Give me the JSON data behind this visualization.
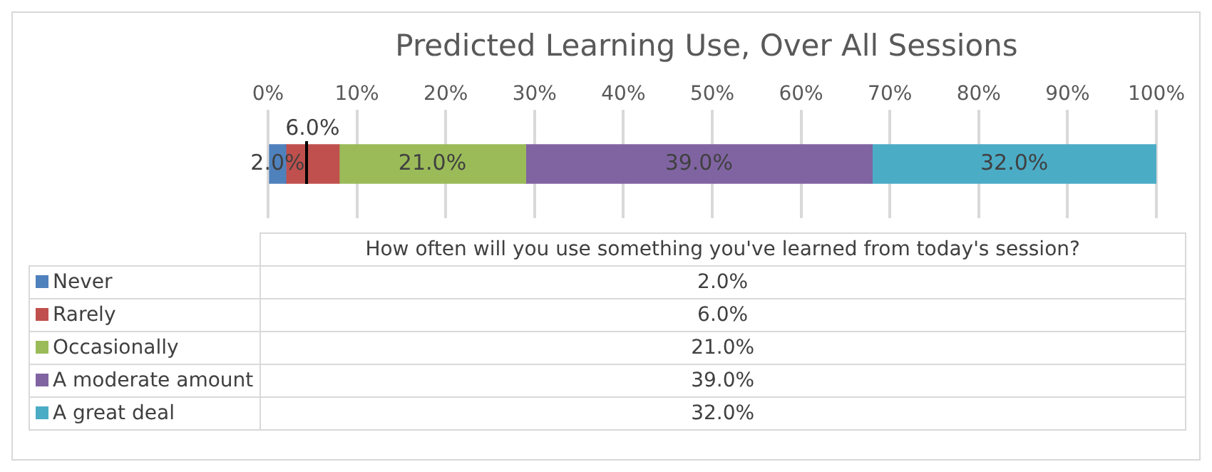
{
  "chart_data": {
    "type": "bar",
    "orientation": "horizontal",
    "stacked": true,
    "title": "Predicted Learning Use, Over All Sessions",
    "categories": [
      null
    ],
    "annotations": [
      "How often will you use something you've learned from today's session?"
    ],
    "series": [
      {
        "name": "Never",
        "color": "#4f81bd",
        "values": [
          2
        ],
        "value_labels": [
          "2.0%"
        ]
      },
      {
        "name": "Rarely",
        "color": "#c0504d",
        "values": [
          6
        ],
        "value_labels": [
          "6.0%"
        ]
      },
      {
        "name": "Occasionally",
        "color": "#9bbb59",
        "values": [
          21
        ],
        "value_labels": [
          "21.0%"
        ]
      },
      {
        "name": "A moderate amount",
        "color": "#8064a2",
        "values": [
          39
        ],
        "value_labels": [
          "39.0%"
        ]
      },
      {
        "name": "A great deal",
        "color": "#4bacc6",
        "values": [
          32
        ],
        "value_labels": [
          "32.0%"
        ]
      }
    ],
    "xlim": [
      0,
      100
    ],
    "xticks": [
      {
        "value": 0,
        "label": "0%"
      },
      {
        "value": 10,
        "label": "10%"
      },
      {
        "value": 20,
        "label": "20%"
      },
      {
        "value": 30,
        "label": "30%"
      },
      {
        "value": 40,
        "label": "40%"
      },
      {
        "value": 50,
        "label": "50%"
      },
      {
        "value": 60,
        "label": "60%"
      },
      {
        "value": 70,
        "label": "70%"
      },
      {
        "value": 80,
        "label": "80%"
      },
      {
        "value": 90,
        "label": "90%"
      },
      {
        "value": 100,
        "label": "100%"
      }
    ],
    "grid": "x",
    "legend": "bottom",
    "tick_labels": "x"
  }
}
